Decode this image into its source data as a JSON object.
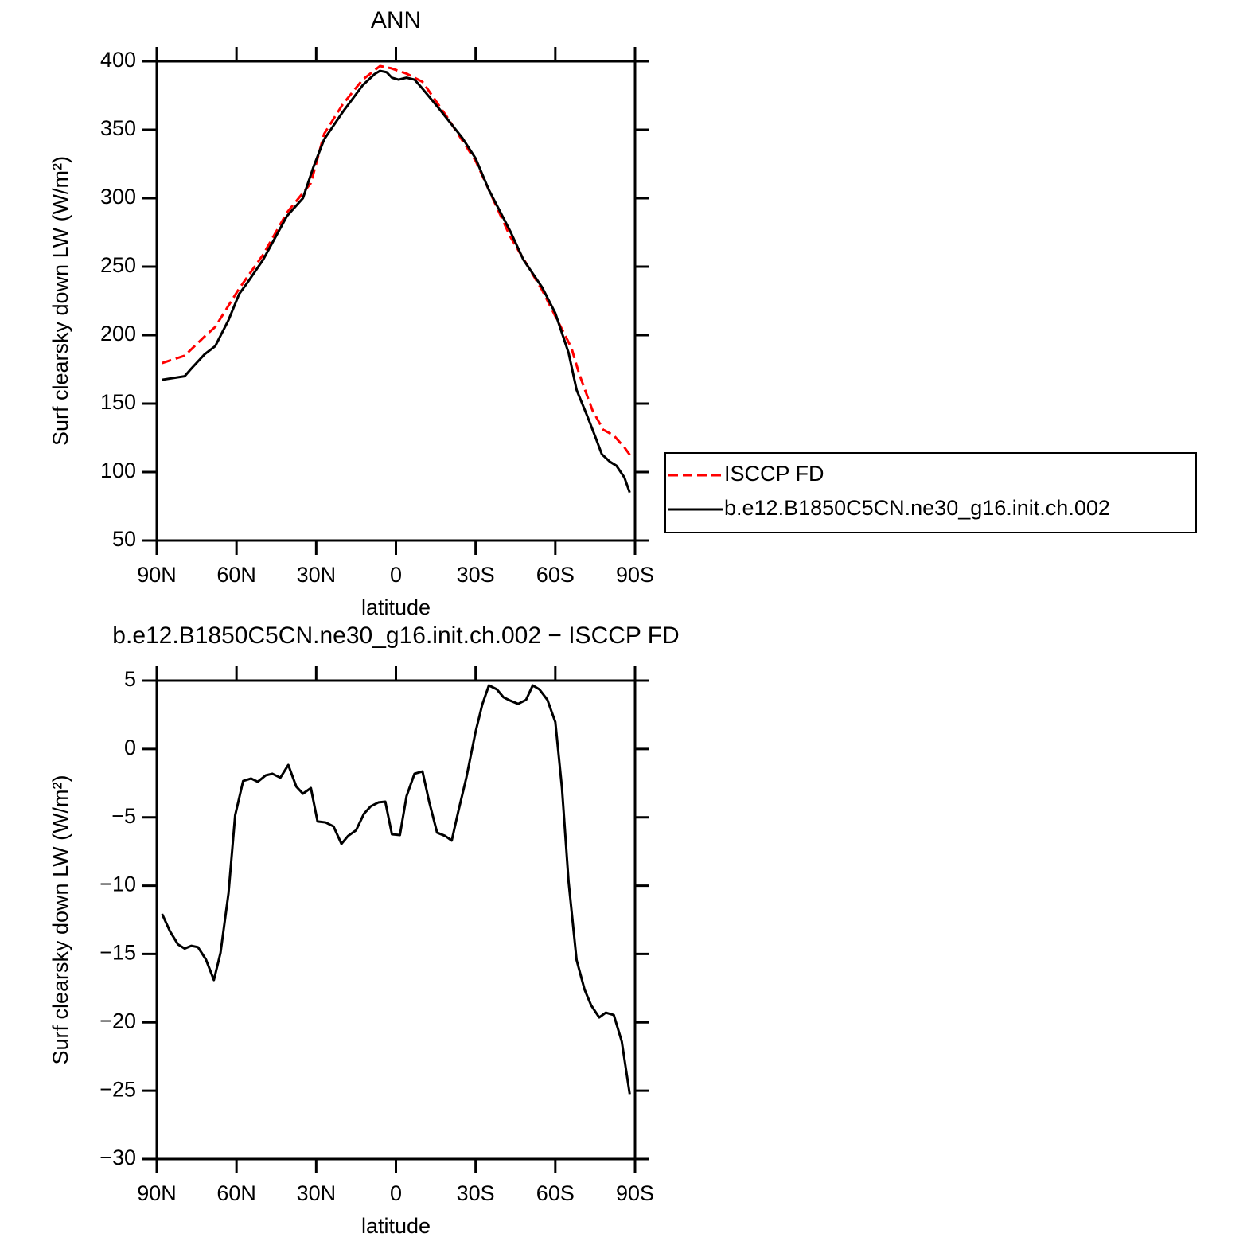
{
  "chart_data": [
    {
      "type": "line",
      "title": "ANN",
      "x_label": "latitude",
      "y_label": "Surf clearsky down LW (W/m²)",
      "xlim": [
        90,
        -90
      ],
      "xticks": [
        {
          "value": 90,
          "label": "90N"
        },
        {
          "value": 60,
          "label": "60N"
        },
        {
          "value": 30,
          "label": "30N"
        },
        0,
        {
          "value": -30,
          "label": "30S"
        },
        {
          "value": -60,
          "label": "60S"
        },
        {
          "value": -90,
          "label": "90S"
        }
      ],
      "ylim": [
        50,
        400
      ],
      "yticks": [
        50,
        100,
        150,
        200,
        250,
        300,
        350,
        400
      ],
      "legend": "right",
      "series": [
        {
          "name": "ISCCP FD",
          "color": "#ff0000",
          "dashed": true,
          "x": [
            88,
            79.5,
            72,
            68,
            59,
            50,
            41,
            32,
            27,
            20,
            12.5,
            6,
            2,
            -4,
            -10,
            -19,
            -30,
            -43,
            -55,
            -61,
            -66,
            -69,
            -74,
            -78,
            -82,
            -86,
            -89
          ],
          "values": [
            179.6,
            185,
            199,
            206,
            234,
            258.7,
            289.5,
            311,
            347,
            368.6,
            386.6,
            396.5,
            395,
            391,
            385,
            360,
            327.3,
            272,
            233,
            210,
            191,
            171.5,
            145,
            131,
            126.7,
            118,
            110
          ]
        },
        {
          "name": "b.e12.B1850C5CN.ne30_g16.init.ch.002",
          "color": "#000000",
          "dashed": false,
          "x": [
            88,
            79.5,
            77,
            72,
            68,
            63,
            59,
            56,
            50,
            41,
            35,
            31,
            27,
            20,
            12.5,
            8,
            6,
            3.5,
            1.5,
            -1,
            -4,
            -7,
            -10,
            -16,
            -25,
            -30,
            -35,
            -43,
            -48,
            -55,
            -60,
            -65,
            -68,
            -72,
            -75,
            -77.5,
            -80.5,
            -83,
            -86,
            -88
          ],
          "values": [
            167.4,
            170,
            175.6,
            186,
            192,
            211,
            230,
            238,
            255,
            287,
            300,
            323,
            343,
            363,
            382.5,
            390.7,
            393,
            392,
            388,
            386.6,
            388,
            386.6,
            380,
            366,
            344,
            329,
            306,
            276,
            255,
            235,
            216,
            187,
            160,
            141,
            126,
            113,
            107.6,
            104.6,
            96,
            85
          ]
        }
      ]
    },
    {
      "type": "line",
      "title": "b.e12.B1850C5CN.ne30_g16.init.ch.002 − ISCCP FD",
      "x_label": "latitude",
      "y_label": "Surf clearsky down LW (W/m²)",
      "xlim": [
        90,
        -90
      ],
      "xticks": [
        {
          "value": 90,
          "label": "90N"
        },
        {
          "value": 60,
          "label": "60N"
        },
        {
          "value": 30,
          "label": "30N"
        },
        0,
        {
          "value": -30,
          "label": "30S"
        },
        {
          "value": -60,
          "label": "60S"
        },
        {
          "value": -90,
          "label": "90S"
        }
      ],
      "ylim": [
        -30,
        5
      ],
      "yticks": [
        {
          "value": -30,
          "label": "−30"
        },
        {
          "value": -25,
          "label": "−25"
        },
        {
          "value": -20,
          "label": "−20"
        },
        {
          "value": -15,
          "label": "−15"
        },
        {
          "value": -10,
          "label": "−10"
        },
        {
          "value": -5,
          "label": "−5"
        },
        0,
        5
      ],
      "series": [
        {
          "color": "#000000",
          "dashed": false,
          "x": [
            88,
            85,
            82,
            79.5,
            77,
            74.5,
            71.5,
            68.5,
            66,
            63,
            60.5,
            57.5,
            54.5,
            52,
            49,
            46.5,
            43.5,
            40.5,
            37.5,
            35,
            32,
            29.5,
            26.5,
            23.5,
            20.5,
            18,
            15,
            12,
            9.5,
            6.5,
            4,
            1.5,
            -1.5,
            -4,
            -7,
            -10,
            -12.5,
            -15.5,
            -18.5,
            -21,
            -23.5,
            -26.5,
            -30,
            -32.5,
            -35,
            -38,
            -40.5,
            -43,
            -46,
            -49,
            -51.5,
            -54,
            -57,
            -60,
            -62.5,
            -65,
            -68,
            -71,
            -73.5,
            -76.5,
            -79,
            -82,
            -85,
            -88
          ],
          "values": [
            -12.07,
            -13.35,
            -14.3,
            -14.6,
            -14.4,
            -14.5,
            -15.4,
            -16.9,
            -14.9,
            -10.55,
            -4.85,
            -2.34,
            -2.16,
            -2.4,
            -1.93,
            -1.81,
            -2.1,
            -1.17,
            -2.75,
            -3.27,
            -2.86,
            -5.3,
            -5.37,
            -5.66,
            -6.94,
            -6.36,
            -5.95,
            -4.73,
            -4.2,
            -3.9,
            -3.85,
            -6.24,
            -6.3,
            -3.45,
            -1.81,
            -1.64,
            -3.85,
            -6.12,
            -6.36,
            -6.7,
            -4.55,
            -2.1,
            1.27,
            3.25,
            4.65,
            4.36,
            3.78,
            3.54,
            3.3,
            3.6,
            4.65,
            4.36,
            3.6,
            1.97,
            -2.86,
            -9.73,
            -15.44,
            -17.6,
            -18.76,
            -19.64,
            -19.29,
            -19.46,
            -21.4,
            -25.25
          ]
        }
      ]
    }
  ]
}
